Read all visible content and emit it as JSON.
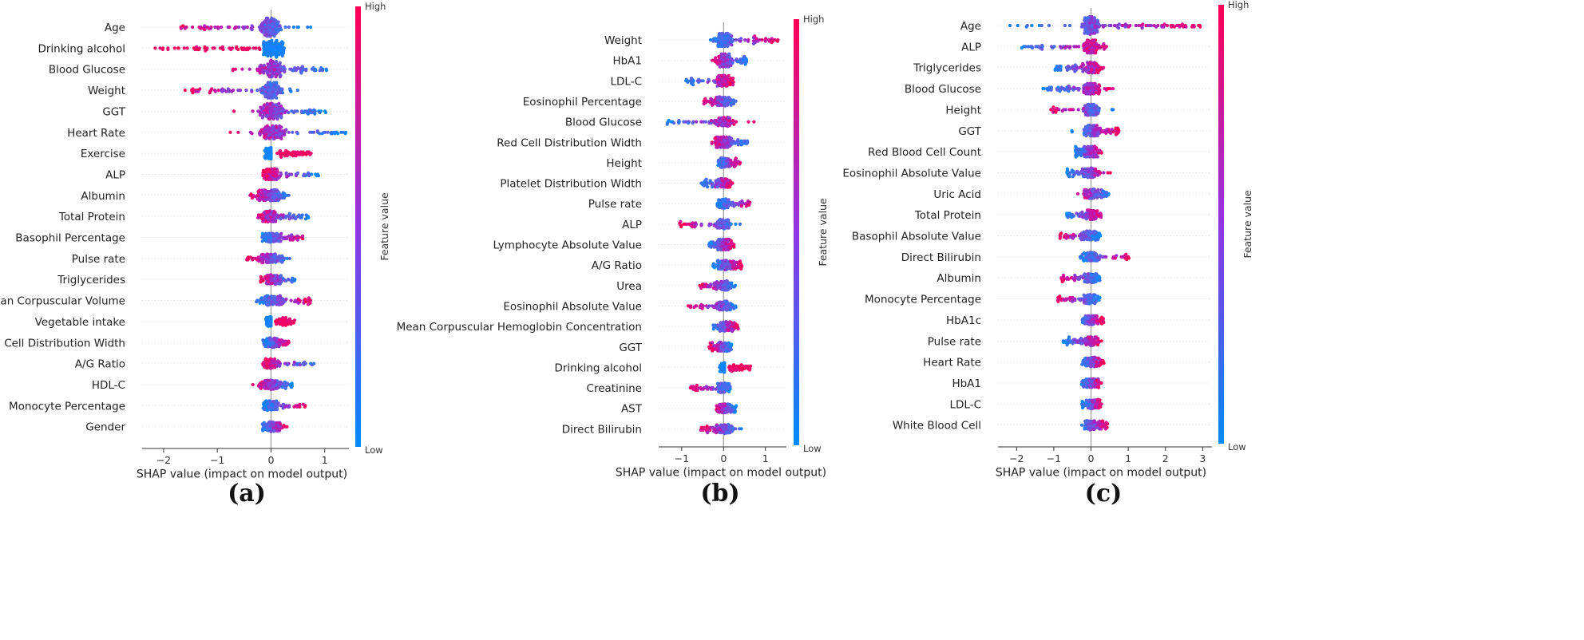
{
  "figure": {
    "colorbar": {
      "high_label": "High",
      "low_label": "Low",
      "title": "Feature value",
      "high_color": "#ff0052",
      "low_color": "#008bfb"
    }
  },
  "chart_data": [
    {
      "type": "scatter",
      "subtype": "shap-beeswarm",
      "panel_label": "(a)",
      "xlabel": "SHAP value (impact on model output)",
      "xlim": [
        -2.4,
        1.45
      ],
      "xticks": [
        -2,
        -1,
        0,
        1
      ],
      "xtick_labels": [
        "−2",
        "−1",
        "0",
        "1"
      ],
      "features": [
        {
          "name": "Age",
          "min": -1.7,
          "max": 0.85,
          "spread": 12,
          "n": 150,
          "pattern": "hi_left"
        },
        {
          "name": "Drinking alcohol",
          "min": -2.2,
          "max": 0.3,
          "spread": 13,
          "n": 150,
          "pattern": "bimodal_hi_left",
          "split": -0.2
        },
        {
          "name": "Blood Glucose",
          "min": -0.75,
          "max": 1.05,
          "spread": 11,
          "n": 150,
          "pattern": "hi_left"
        },
        {
          "name": "Weight",
          "min": -1.6,
          "max": 0.65,
          "spread": 11,
          "n": 150,
          "pattern": "hi_left"
        },
        {
          "name": "GGT",
          "min": -0.75,
          "max": 1.05,
          "spread": 10,
          "n": 150,
          "pattern": "hi_left"
        },
        {
          "name": "Heart Rate",
          "min": -0.9,
          "max": 1.4,
          "spread": 8,
          "n": 140,
          "pattern": "hi_left"
        },
        {
          "name": "Exercise",
          "min": -0.12,
          "max": 0.75,
          "spread": 7,
          "n": 130,
          "pattern": "bimodal_hi_right",
          "split": 0.0
        },
        {
          "name": "ALP",
          "min": -0.15,
          "max": 0.9,
          "spread": 7,
          "n": 130,
          "pattern": "lo_right"
        },
        {
          "name": "Albumin",
          "min": -0.4,
          "max": 0.35,
          "spread": 7,
          "n": 130,
          "pattern": "hi_left"
        },
        {
          "name": "Total Protein",
          "min": -0.35,
          "max": 0.7,
          "spread": 7,
          "n": 130,
          "pattern": "lo_right"
        },
        {
          "name": "Basophil Percentage",
          "min": -0.2,
          "max": 0.6,
          "spread": 6,
          "n": 120,
          "pattern": "hi_right"
        },
        {
          "name": "Pulse rate",
          "min": -0.45,
          "max": 0.4,
          "spread": 6,
          "n": 120,
          "pattern": "hi_left"
        },
        {
          "name": "Triglycerides",
          "min": -0.25,
          "max": 0.45,
          "spread": 6,
          "n": 120,
          "pattern": "lo_right"
        },
        {
          "name": "Mean Corpuscular Volume",
          "min": -0.3,
          "max": 0.75,
          "spread": 6,
          "n": 120,
          "pattern": "hi_right"
        },
        {
          "name": "Vegetable intake",
          "min": -0.1,
          "max": 0.45,
          "spread": 6,
          "n": 110,
          "pattern": "bimodal_hi_right",
          "split": 0.0
        },
        {
          "name": "Red Cell Distribution Width",
          "min": -0.15,
          "max": 0.35,
          "spread": 6,
          "n": 110,
          "pattern": "hi_right"
        },
        {
          "name": "A/G Ratio",
          "min": -0.15,
          "max": 0.85,
          "spread": 6,
          "n": 110,
          "pattern": "lo_right"
        },
        {
          "name": "HDL-C",
          "min": -0.35,
          "max": 0.4,
          "spread": 6,
          "n": 110,
          "pattern": "hi_left"
        },
        {
          "name": "Monocyte Percentage",
          "min": -0.15,
          "max": 0.65,
          "spread": 6,
          "n": 110,
          "pattern": "hi_right"
        },
        {
          "name": "Gender",
          "min": -0.2,
          "max": 0.3,
          "spread": 6,
          "n": 100,
          "pattern": "hi_right"
        }
      ]
    },
    {
      "type": "scatter",
      "subtype": "shap-beeswarm",
      "panel_label": "(b)",
      "xlabel": "SHAP value (impact on model output)",
      "xlim": [
        -1.55,
        1.5
      ],
      "xticks": [
        -1,
        0,
        1
      ],
      "xtick_labels": [
        "−1",
        "0",
        "1"
      ],
      "features": [
        {
          "name": "Weight",
          "min": -0.35,
          "max": 1.35,
          "spread": 8,
          "n": 140,
          "pattern": "hi_right"
        },
        {
          "name": "HbA1",
          "min": -0.35,
          "max": 0.55,
          "spread": 8,
          "n": 130,
          "pattern": "lo_right"
        },
        {
          "name": "LDL-C",
          "min": -0.9,
          "max": 0.25,
          "spread": 7,
          "n": 120,
          "pattern": "lo_left"
        },
        {
          "name": "Eosinophil Percentage",
          "min": -0.5,
          "max": 0.3,
          "spread": 6,
          "n": 110,
          "pattern": "hi_left"
        },
        {
          "name": "Blood Glucose",
          "min": -1.45,
          "max": 0.75,
          "spread": 6,
          "n": 120,
          "pattern": "lo_left"
        },
        {
          "name": "Red Cell Distribution Width",
          "min": -0.35,
          "max": 0.6,
          "spread": 7,
          "n": 110,
          "pattern": "lo_right"
        },
        {
          "name": "Height",
          "min": -0.15,
          "max": 0.4,
          "spread": 6,
          "n": 100,
          "pattern": "hi_right"
        },
        {
          "name": "Platelet Distribution Width",
          "min": -0.55,
          "max": 0.25,
          "spread": 6,
          "n": 100,
          "pattern": "lo_left"
        },
        {
          "name": "Pulse rate",
          "min": -0.15,
          "max": 0.65,
          "spread": 6,
          "n": 110,
          "pattern": "hi_right"
        },
        {
          "name": "ALP",
          "min": -1.1,
          "max": 0.45,
          "spread": 6,
          "n": 110,
          "pattern": "hi_left"
        },
        {
          "name": "Lymphocyte Absolute Value",
          "min": -0.35,
          "max": 0.25,
          "spread": 7,
          "n": 110,
          "pattern": "hi_right"
        },
        {
          "name": "A/G Ratio",
          "min": -0.25,
          "max": 0.45,
          "spread": 6,
          "n": 110,
          "pattern": "hi_right"
        },
        {
          "name": "Urea",
          "min": -0.6,
          "max": 0.3,
          "spread": 6,
          "n": 110,
          "pattern": "hi_left"
        },
        {
          "name": "Eosinophil Absolute Value",
          "min": -0.85,
          "max": 0.45,
          "spread": 6,
          "n": 110,
          "pattern": "hi_left"
        },
        {
          "name": "Mean Corpuscular Hemoglobin Concentration",
          "min": -0.3,
          "max": 0.35,
          "spread": 6,
          "n": 110,
          "pattern": "hi_right"
        },
        {
          "name": "GGT",
          "min": -0.35,
          "max": 0.2,
          "spread": 6,
          "n": 100,
          "pattern": "lo_right"
        },
        {
          "name": "Drinking alcohol",
          "min": -0.1,
          "max": 0.65,
          "spread": 6,
          "n": 110,
          "pattern": "bimodal_hi_right",
          "split": 0.02
        },
        {
          "name": "Creatinine",
          "min": -0.8,
          "max": 0.2,
          "spread": 6,
          "n": 110,
          "pattern": "hi_left"
        },
        {
          "name": "AST",
          "min": -0.2,
          "max": 0.3,
          "spread": 6,
          "n": 100,
          "pattern": "lo_right"
        },
        {
          "name": "Direct Bilirubin",
          "min": -0.55,
          "max": 0.45,
          "spread": 6,
          "n": 100,
          "pattern": "hi_left"
        }
      ]
    },
    {
      "type": "scatter",
      "subtype": "shap-beeswarm",
      "panel_label": "(c)",
      "xlabel": "SHAP value (impact on model output)",
      "xlim": [
        -2.5,
        3.25
      ],
      "xticks": [
        -2,
        -1,
        0,
        1,
        2,
        3
      ],
      "xtick_labels": [
        "−2",
        "−1",
        "0",
        "1",
        "2",
        "3"
      ],
      "features": [
        {
          "name": "Age",
          "min": -2.2,
          "max": 2.95,
          "spread": 11,
          "n": 220,
          "pattern": "hi_right"
        },
        {
          "name": "ALP",
          "min": -1.9,
          "max": 0.45,
          "spread": 8,
          "n": 130,
          "pattern": "lo_left"
        },
        {
          "name": "Triglycerides",
          "min": -1.0,
          "max": 0.35,
          "spread": 7,
          "n": 120,
          "pattern": "lo_left"
        },
        {
          "name": "Blood Glucose",
          "min": -1.3,
          "max": 0.65,
          "spread": 7,
          "n": 130,
          "pattern": "lo_left"
        },
        {
          "name": "Height",
          "min": -1.1,
          "max": 0.6,
          "spread": 7,
          "n": 130,
          "pattern": "hi_left"
        },
        {
          "name": "GGT",
          "min": -0.55,
          "max": 0.75,
          "spread": 7,
          "n": 120,
          "pattern": "hi_right"
        },
        {
          "name": "Red Blood Cell Count",
          "min": -0.45,
          "max": 0.35,
          "spread": 7,
          "n": 110,
          "pattern": "hi_right"
        },
        {
          "name": "Eosinophil Absolute Value",
          "min": -0.65,
          "max": 0.55,
          "spread": 6,
          "n": 110,
          "pattern": "lo_left"
        },
        {
          "name": "Uric Acid",
          "min": -0.45,
          "max": 0.5,
          "spread": 6,
          "n": 110,
          "pattern": "hi_left"
        },
        {
          "name": "Total Protein",
          "min": -0.65,
          "max": 0.3,
          "spread": 6,
          "n": 110,
          "pattern": "lo_left"
        },
        {
          "name": "Basophil Absolute Value",
          "min": -0.85,
          "max": 0.25,
          "spread": 6,
          "n": 110,
          "pattern": "hi_left"
        },
        {
          "name": "Direct Bilirubin",
          "min": -0.35,
          "max": 1.05,
          "spread": 6,
          "n": 110,
          "pattern": "hi_right"
        },
        {
          "name": "Albumin",
          "min": -0.8,
          "max": 0.25,
          "spread": 6,
          "n": 110,
          "pattern": "hi_left"
        },
        {
          "name": "Monocyte Percentage",
          "min": -0.9,
          "max": 0.25,
          "spread": 6,
          "n": 110,
          "pattern": "hi_left"
        },
        {
          "name": "HbA1c",
          "min": -0.35,
          "max": 0.35,
          "spread": 6,
          "n": 100,
          "pattern": "hi_right"
        },
        {
          "name": "Pulse rate",
          "min": -0.75,
          "max": 0.3,
          "spread": 6,
          "n": 100,
          "pattern": "lo_left"
        },
        {
          "name": "Heart Rate",
          "min": -0.3,
          "max": 0.35,
          "spread": 6,
          "n": 100,
          "pattern": "hi_right"
        },
        {
          "name": "HbA1",
          "min": -0.3,
          "max": 0.3,
          "spread": 6,
          "n": 100,
          "pattern": "hi_right"
        },
        {
          "name": "LDL-C",
          "min": -0.25,
          "max": 0.3,
          "spread": 6,
          "n": 100,
          "pattern": "hi_right"
        },
        {
          "name": "White Blood Cell",
          "min": -0.3,
          "max": 0.45,
          "spread": 6,
          "n": 100,
          "pattern": "hi_right"
        }
      ]
    }
  ]
}
